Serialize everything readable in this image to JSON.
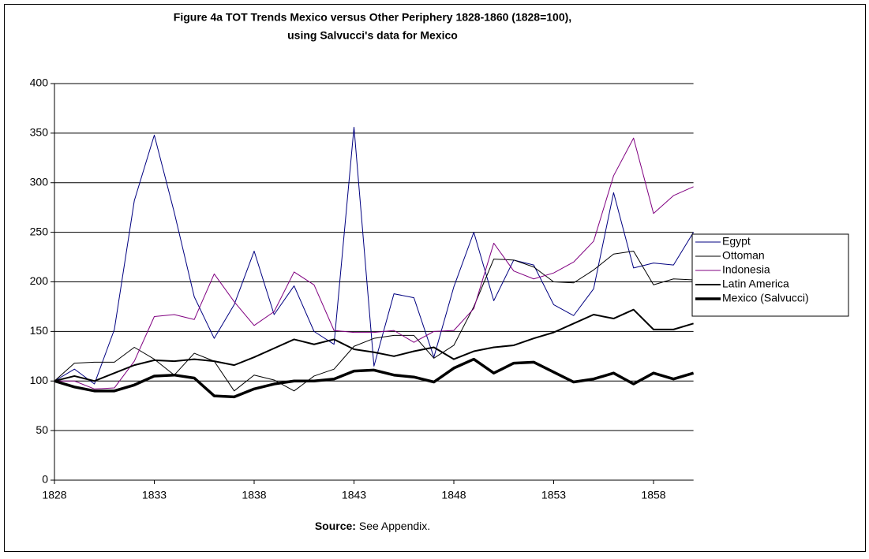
{
  "chart_data": {
    "type": "line",
    "title": [
      "Figure 4a TOT Trends Mexico versus Other Periphery 1828-1860 (1828=100),",
      "using Salvucci's data for Mexico"
    ],
    "source_label": "Source:",
    "source_text": "See Appendix.",
    "x": [
      1828,
      1829,
      1830,
      1831,
      1832,
      1833,
      1834,
      1835,
      1836,
      1837,
      1838,
      1839,
      1840,
      1841,
      1842,
      1843,
      1844,
      1845,
      1846,
      1847,
      1848,
      1849,
      1850,
      1851,
      1852,
      1853,
      1854,
      1855,
      1856,
      1857,
      1858,
      1859,
      1860
    ],
    "xlim": [
      1828,
      1860
    ],
    "xticks": [
      1828,
      1833,
      1838,
      1843,
      1848,
      1853,
      1858
    ],
    "ylim": [
      0,
      400
    ],
    "yticks": [
      0,
      50,
      100,
      150,
      200,
      250,
      300,
      350,
      400
    ],
    "grid": true,
    "legend": "right",
    "series": [
      {
        "name": "Egypt",
        "color": "#000080",
        "line_width": 1,
        "values": [
          100,
          112,
          97,
          152,
          282,
          348,
          270,
          185,
          143,
          177,
          231,
          167,
          196,
          150,
          137,
          356,
          115,
          188,
          184,
          124,
          195,
          250,
          181,
          222,
          217,
          177,
          166,
          193,
          290,
          214,
          219,
          217,
          250
        ]
      },
      {
        "name": "Ottoman",
        "color": "#000000",
        "line_width": 1,
        "values": [
          100,
          118,
          119,
          119,
          134,
          122,
          106,
          128,
          120,
          90,
          106,
          101,
          90,
          105,
          112,
          135,
          143,
          146,
          146,
          123,
          136,
          175,
          223,
          222,
          215,
          200,
          199,
          212,
          228,
          231,
          197,
          203,
          202
        ]
      },
      {
        "name": "Indonesia",
        "color": "#800080",
        "line_width": 1,
        "values": [
          100,
          100,
          92,
          93,
          120,
          165,
          167,
          162,
          208,
          180,
          156,
          170,
          210,
          197,
          151,
          149,
          149,
          151,
          139,
          150,
          151,
          173,
          239,
          211,
          203,
          209,
          220,
          241,
          307,
          345,
          269,
          287,
          296
        ]
      },
      {
        "name": "Latin America",
        "color": "#000000",
        "line_width": 2,
        "values": [
          100,
          105,
          100,
          108,
          116,
          121,
          120,
          122,
          120,
          116,
          124,
          133,
          142,
          137,
          142,
          132,
          129,
          125,
          130,
          134,
          122,
          130,
          134,
          136,
          143,
          149,
          158,
          167,
          163,
          172,
          152,
          152,
          158
        ]
      },
      {
        "name": "Mexico (Salvucci)",
        "color": "#000000",
        "line_width": 3.5,
        "values": [
          100,
          94,
          90,
          90,
          96,
          105,
          106,
          103,
          85,
          84,
          92,
          97,
          100,
          100,
          102,
          110,
          111,
          106,
          104,
          99,
          113,
          122,
          108,
          118,
          119,
          109,
          99,
          102,
          108,
          97,
          108,
          102,
          108
        ]
      }
    ]
  }
}
